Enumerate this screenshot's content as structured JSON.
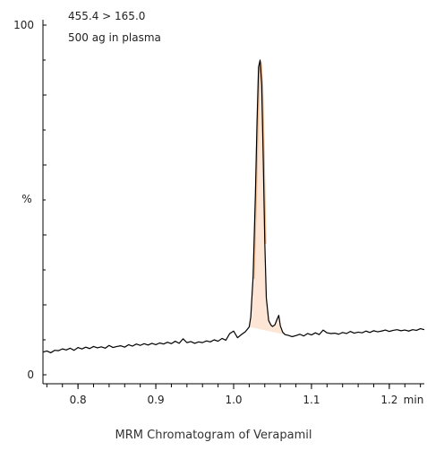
{
  "caption": "MRM Chromatogram of Verapamil",
  "chart_data": {
    "type": "line",
    "title": "",
    "annotations": [
      "455.4 > 165.0",
      "500 ag in plasma"
    ],
    "x_unit_label": "min",
    "y_unit_label": "%",
    "xlim": [
      0.755,
      1.245
    ],
    "ylim": [
      0,
      100
    ],
    "x_ticks": [
      {
        "value": 0.8,
        "label": "0.8"
      },
      {
        "value": 0.9,
        "label": "0.9"
      },
      {
        "value": 1.0,
        "label": "1.0"
      },
      {
        "value": 1.1,
        "label": "1.1"
      },
      {
        "value": 1.2,
        "label": "1.2"
      }
    ],
    "y_ticks": [
      {
        "value": 0,
        "label": "0"
      },
      {
        "value": 100,
        "label": "100"
      }
    ],
    "peak_fill_color": "#fde6d6",
    "peak_edge_color": "#e9b48a",
    "line_color": "#000000",
    "series": [
      {
        "x": [
          0.755,
          0.76,
          0.765,
          0.77,
          0.775,
          0.78,
          0.785,
          0.79,
          0.795,
          0.8,
          0.805,
          0.81,
          0.815,
          0.82,
          0.825,
          0.83,
          0.835,
          0.84,
          0.845,
          0.85,
          0.855,
          0.86,
          0.865,
          0.87,
          0.875,
          0.88,
          0.885,
          0.89,
          0.895,
          0.9,
          0.905,
          0.91,
          0.915,
          0.92,
          0.925,
          0.93,
          0.935,
          0.94,
          0.945,
          0.95,
          0.955,
          0.96,
          0.965,
          0.97,
          0.975,
          0.98,
          0.985,
          0.99,
          0.995,
          1.0,
          1.005,
          1.01,
          1.015,
          1.02,
          1.022,
          1.025,
          1.028,
          1.03,
          1.032,
          1.034,
          1.036,
          1.038,
          1.04,
          1.042,
          1.045,
          1.048,
          1.05,
          1.053,
          1.056,
          1.058,
          1.06,
          1.063,
          1.066,
          1.07,
          1.075,
          1.08,
          1.085,
          1.09,
          1.095,
          1.1,
          1.105,
          1.11,
          1.115,
          1.12,
          1.125,
          1.13,
          1.135,
          1.14,
          1.145,
          1.15,
          1.155,
          1.16,
          1.165,
          1.17,
          1.175,
          1.18,
          1.185,
          1.19,
          1.195,
          1.2,
          1.205,
          1.21,
          1.215,
          1.22,
          1.225,
          1.23,
          1.235,
          1.24,
          1.245
        ],
        "y": [
          6.5,
          6.8,
          6.3,
          7.0,
          6.9,
          7.4,
          7.1,
          7.6,
          7.0,
          7.8,
          7.4,
          7.9,
          7.5,
          8.1,
          7.7,
          8.0,
          7.6,
          8.4,
          7.8,
          8.1,
          8.3,
          7.9,
          8.6,
          8.2,
          8.8,
          8.4,
          8.9,
          8.5,
          9.0,
          8.6,
          9.1,
          8.8,
          9.3,
          8.9,
          9.6,
          9.0,
          10.3,
          9.2,
          9.5,
          9.0,
          9.4,
          9.2,
          9.7,
          9.4,
          10.0,
          9.6,
          10.4,
          9.9,
          11.8,
          12.5,
          10.6,
          11.5,
          12.3,
          13.7,
          16.5,
          28.0,
          52.0,
          72.0,
          88.0,
          90.0,
          83.0,
          62.0,
          38.0,
          22.0,
          15.5,
          14.2,
          13.8,
          14.3,
          16.0,
          17.0,
          14.0,
          12.2,
          11.5,
          11.3,
          10.9,
          11.2,
          11.6,
          11.1,
          11.8,
          11.4,
          12.0,
          11.5,
          12.8,
          12.0,
          11.8,
          11.9,
          11.6,
          12.1,
          11.8,
          12.4,
          11.9,
          12.2,
          12.0,
          12.5,
          12.1,
          12.6,
          12.3,
          12.5,
          12.8,
          12.4,
          12.7,
          12.9,
          12.6,
          12.8,
          12.5,
          12.9,
          12.7,
          13.2,
          12.9
        ]
      }
    ]
  }
}
